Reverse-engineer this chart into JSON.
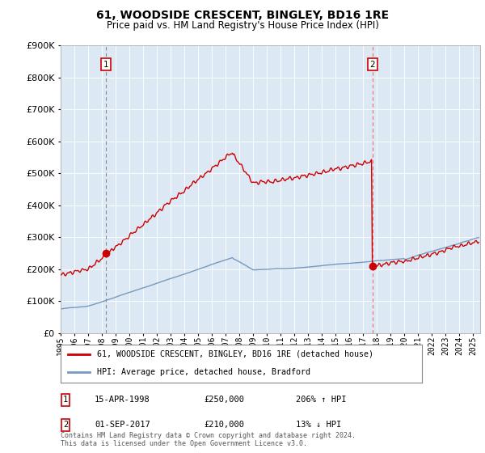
{
  "title": "61, WOODSIDE CRESCENT, BINGLEY, BD16 1RE",
  "subtitle": "Price paid vs. HM Land Registry's House Price Index (HPI)",
  "legend_line1": "61, WOODSIDE CRESCENT, BINGLEY, BD16 1RE (detached house)",
  "legend_line2": "HPI: Average price, detached house, Bradford",
  "transaction1_date": "15-APR-1998",
  "transaction1_price": "£250,000",
  "transaction1_hpi": "206% ↑ HPI",
  "transaction1_year": 1998.29,
  "transaction1_value": 250000,
  "transaction2_date": "01-SEP-2017",
  "transaction2_price": "£210,000",
  "transaction2_hpi": "13% ↓ HPI",
  "transaction2_year": 2017.67,
  "transaction2_value": 210000,
  "footer": "Contains HM Land Registry data © Crown copyright and database right 2024.\nThis data is licensed under the Open Government Licence v3.0.",
  "red_color": "#cc0000",
  "blue_color": "#7799bb",
  "plot_bg_color": "#dce9f5",
  "vline1_color": "#888888",
  "vline2_color": "#ff6666",
  "background_color": "#ffffff",
  "ylim": [
    0,
    900000
  ],
  "xlim": [
    1995.0,
    2025.5
  ],
  "title_fontsize": 10,
  "subtitle_fontsize": 8.5,
  "tick_fontsize": 7,
  "ylabel_fontsize": 8
}
